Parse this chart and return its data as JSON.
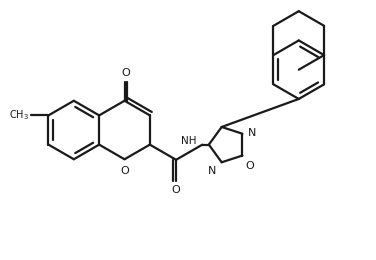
{
  "bg_color": "#ffffff",
  "line_color": "#1a1a1a",
  "line_width": 1.6,
  "fig_width": 3.76,
  "fig_height": 2.6,
  "dpi": 100,
  "xlim": [
    0,
    10.5
  ],
  "ylim": [
    0,
    7.0
  ]
}
